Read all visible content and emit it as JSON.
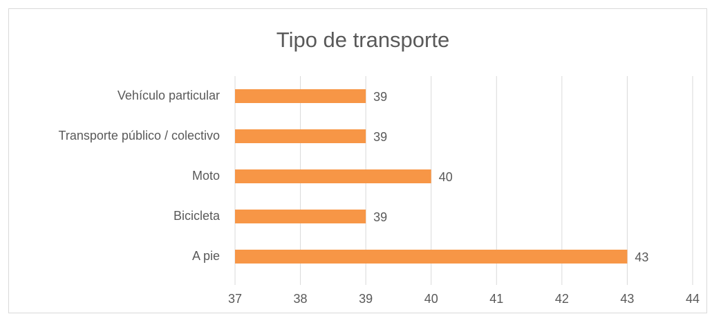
{
  "chart_data": {
    "type": "bar",
    "orientation": "horizontal",
    "title": "Tipo de transporte",
    "categories": [
      "Vehículo particular",
      "Transporte público / colectivo",
      "Moto",
      "Bicicleta",
      "A pie"
    ],
    "values": [
      39,
      39,
      40,
      39,
      43
    ],
    "color": "#f79646",
    "xlim": [
      37,
      44
    ],
    "xticks": [
      37,
      38,
      39,
      40,
      41,
      42,
      43,
      44
    ],
    "grid": true
  }
}
